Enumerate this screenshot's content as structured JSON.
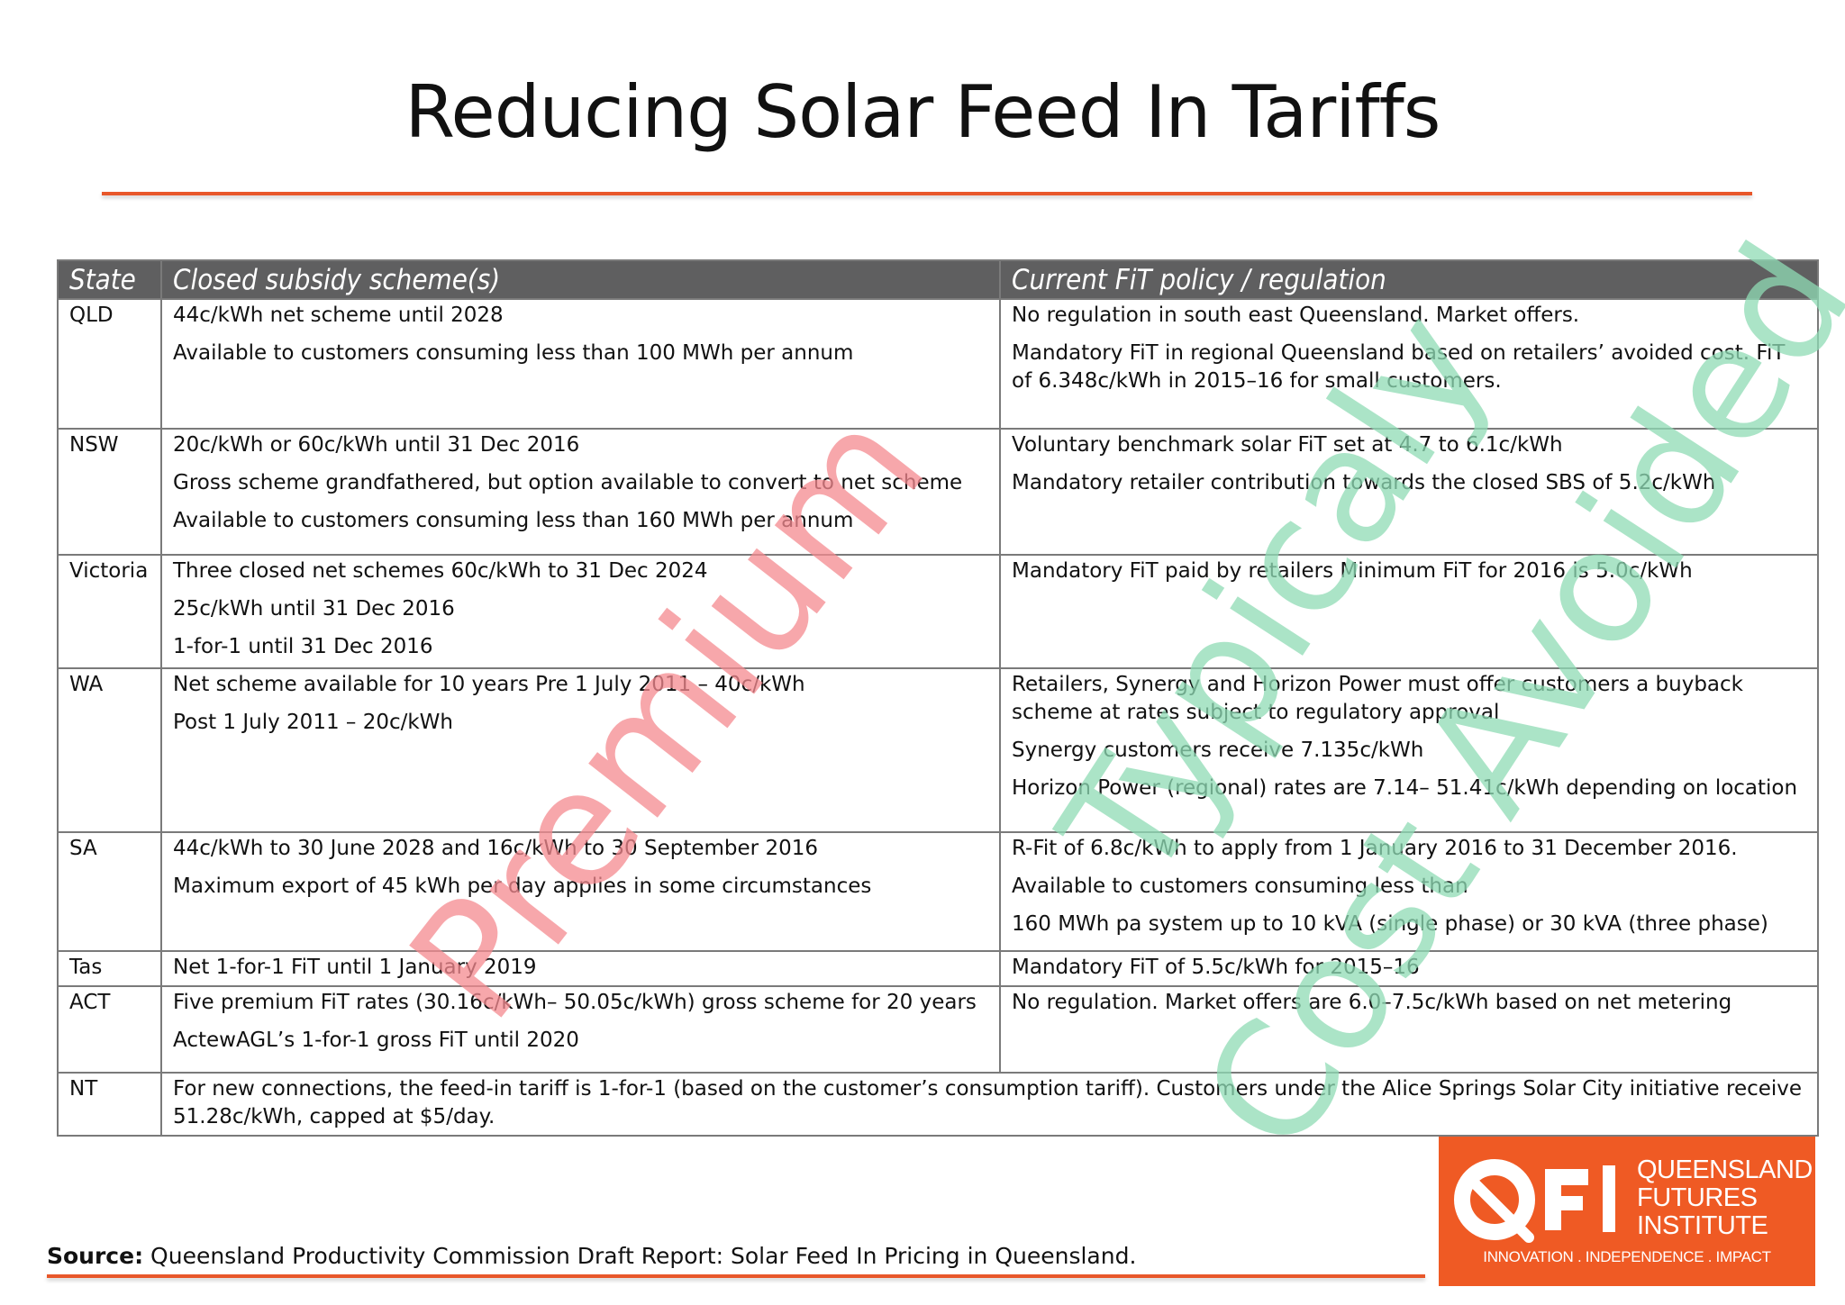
{
  "title": "Reducing Solar Feed In Tariffs",
  "colors": {
    "accent_rule": "#e8572a",
    "header_bg": "#5f5f60",
    "logo_bg": "#ef5a24",
    "watermark_premium": "#f58a90",
    "watermark_typicaly": "#8fdcb5",
    "watermark_cost_avoided": "#8fdcb5"
  },
  "table": {
    "headers": [
      "State",
      "Closed subsidy scheme(s)",
      "Current FiT policy / regulation"
    ],
    "rows": [
      {
        "state": "QLD",
        "closed": [
          "44c/kWh net scheme until 2028",
          "Available to customers consuming less than 100 MWh per annum"
        ],
        "current": [
          "No regulation in south east Queensland. Market offers.",
          "Mandatory FiT in regional Queensland based on retailers’ avoided cost. FiT of 6.348c/kWh in 2015–16 for small customers."
        ]
      },
      {
        "state": "NSW",
        "closed": [
          "20c/kWh or 60c/kWh until 31 Dec 2016",
          "Gross scheme grandfathered, but option available to convert to net scheme",
          "Available to customers consuming less than 160 MWh per annum"
        ],
        "current": [
          "Voluntary benchmark solar FiT set at 4.7 to 6.1c/kWh",
          "Mandatory retailer contribution towards the closed SBS of 5.2c/kWh"
        ]
      },
      {
        "state": "Victoria",
        "closed": [
          "Three closed net schemes 60c/kWh to 31 Dec 2024",
          "25c/kWh until 31 Dec 2016",
          "1-for-1 until 31 Dec 2016"
        ],
        "current": [
          "Mandatory FiT paid by retailers Minimum FiT for 2016 is 5.0c/kWh"
        ]
      },
      {
        "state": "WA",
        "closed": [
          "Net scheme available for 10 years Pre 1 July 2011 – 40c/kWh",
          "Post 1 July 2011 – 20c/kWh"
        ],
        "current": [
          "Retailers, Synergy and Horizon Power must offer customers a buyback scheme at rates subject to regulatory approval",
          "Synergy customers receive 7.135c/kWh",
          "Horizon Power (regional) rates are 7.14– 51.41c/kWh depending on location"
        ]
      },
      {
        "state": "SA",
        "closed": [
          "44c/kWh to 30 June 2028 and 16c/kWh to 30 September 2016",
          "Maximum export of 45 kWh per day applies in some circumstances"
        ],
        "current": [
          "R-Fit of 6.8c/kWh to apply from 1 January 2016 to 31 December 2016.",
          "Available to customers consuming less than",
          "160 MWh pa system up to 10 kVA (single phase) or 30 kVA (three phase)"
        ]
      },
      {
        "state": "Tas",
        "closed": [
          "Net 1-for-1 FiT until 1 January 2019"
        ],
        "current": [
          "Mandatory FiT of 5.5c/kWh for 2015–16"
        ]
      },
      {
        "state": "ACT",
        "closed": [
          "Five premium FiT rates (30.16c/kWh– 50.05c/kWh) gross scheme for 20 years",
          "ActewAGL’s 1-for-1 gross FiT until 2020"
        ],
        "current": [
          "No regulation. Market offers are 6.0–7.5c/kWh based on net metering"
        ]
      },
      {
        "state": "NT",
        "merged": "For new connections, the feed-in tariff is 1-for-1 (based on the customer’s consumption tariff). Customers under the Alice Springs Solar City initiative receive 51.28c/kWh, capped at $5/day."
      }
    ]
  },
  "watermarks": {
    "premium": "Premium",
    "typicaly": "Typicaly",
    "cost_avoided": "Cost Avoided"
  },
  "source": {
    "label": "Source:",
    "text": "Queensland Productivity Commission Draft Report: Solar Feed In Pricing in Queensland."
  },
  "logo": {
    "line1": "QUEENSLAND",
    "line2": "FUTURES",
    "line3": "INSTITUTE",
    "tagline": "INNOVATION . INDEPENDENCE . IMPACT",
    "icon": "qfi-logo-icon"
  }
}
